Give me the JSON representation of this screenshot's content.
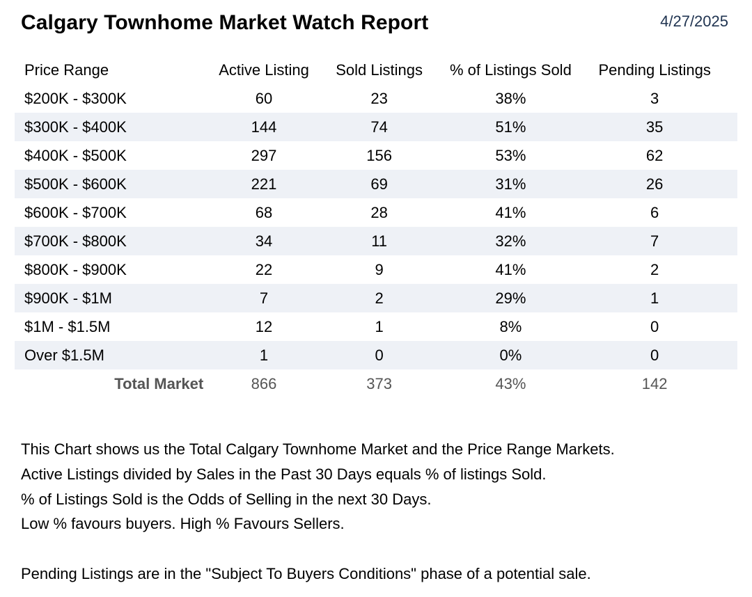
{
  "report": {
    "title": "Calgary Townhome Market Watch Report",
    "date": "4/27/2025"
  },
  "table": {
    "headers": [
      "Price Range",
      "Active Listing",
      "Sold Listings",
      "% of Listings Sold",
      "Pending Listings"
    ],
    "rows": [
      [
        "$200K - $300K",
        "60",
        "23",
        "38%",
        "3"
      ],
      [
        "$300K - $400K",
        "144",
        "74",
        "51%",
        "35"
      ],
      [
        "$400K - $500K",
        "297",
        "156",
        "53%",
        "62"
      ],
      [
        "$500K - $600K",
        "221",
        "69",
        "31%",
        "26"
      ],
      [
        "$600K - $700K",
        "68",
        "28",
        "41%",
        "6"
      ],
      [
        "$700K - $800K",
        "34",
        "11",
        "32%",
        "7"
      ],
      [
        "$800K - $900K",
        "22",
        "9",
        "41%",
        "2"
      ],
      [
        "$900K - $1M",
        "7",
        "2",
        "29%",
        "1"
      ],
      [
        "$1M - $1.5M",
        "12",
        "1",
        "8%",
        "0"
      ],
      [
        "Over $1.5M",
        "1",
        "0",
        "0%",
        "0"
      ]
    ],
    "total": [
      "Total Market",
      "866",
      "373",
      "43%",
      "142"
    ]
  },
  "notes": {
    "line1": "This Chart shows us the Total Calgary Townhome Market and the Price Range Markets.",
    "line2": "Active Listings divided by Sales in the Past 30 Days equals % of listings Sold.",
    "line3": "% of Listings Sold is the Odds of Selling in the next 30 Days.",
    "line4": "Low % favours buyers. High % Favours Sellers.",
    "line5": "Pending Listings are in the \"Subject To Buyers Conditions\" phase of a potential sale."
  }
}
